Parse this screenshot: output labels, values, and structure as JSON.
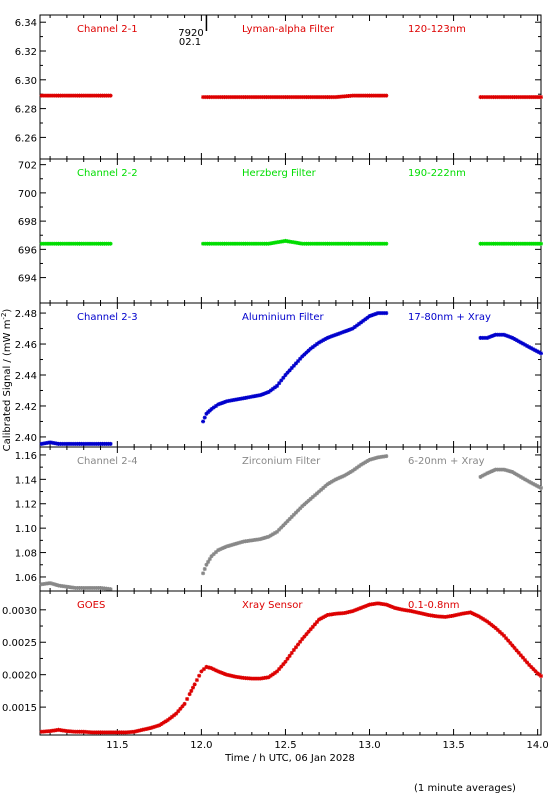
{
  "figure": {
    "ylabel": "Calibrated Signal / (mW m",
    "ylabel_sup": "-2",
    "ylabel_close": ")",
    "xlabel": "Time / h UTC, 06 Jan 2028",
    "footnote": "(1 minute averages)",
    "marker": {
      "top": "7920",
      "bottom": "02.1"
    }
  },
  "chart_data": [
    {
      "type": "scatter",
      "channel": "Channel 2-1",
      "filter": "Lyman-alpha Filter",
      "band": "120-123nm",
      "color": "#dd0000",
      "xlim": [
        11.04,
        14.02
      ],
      "ylim": [
        6.245,
        6.345
      ],
      "yticks": [
        6.26,
        6.28,
        6.3,
        6.32,
        6.34
      ],
      "ytick_labels": [
        "6.26",
        "6.28",
        "6.30",
        "6.32",
        "6.34"
      ],
      "series": [
        {
          "x": [
            11.05,
            11.1,
            11.15,
            11.2,
            11.25,
            11.3,
            11.35,
            11.4,
            11.46
          ],
          "y": [
            6.289,
            6.289,
            6.289,
            6.289,
            6.289,
            6.289,
            6.289,
            6.289,
            6.289
          ]
        },
        {
          "x": [
            12.01,
            12.1,
            12.2,
            12.3,
            12.4,
            12.5,
            12.6,
            12.7,
            12.8,
            12.9,
            13.0,
            13.1
          ],
          "y": [
            6.288,
            6.288,
            6.288,
            6.288,
            6.288,
            6.288,
            6.288,
            6.288,
            6.288,
            6.289,
            6.289,
            6.289
          ]
        },
        {
          "x": [
            13.66,
            13.75,
            13.85,
            13.95,
            14.02
          ],
          "y": [
            6.288,
            6.288,
            6.288,
            6.288,
            6.288
          ]
        }
      ]
    },
    {
      "type": "scatter",
      "channel": "Channel 2-2",
      "filter": "Herzberg Filter",
      "band": "190-222nm",
      "color": "#00dd00",
      "xlim": [
        11.04,
        14.02
      ],
      "ylim": [
        692.2,
        702.4
      ],
      "yticks": [
        694,
        696,
        698,
        700,
        702
      ],
      "ytick_labels": [
        "694",
        "696",
        "698",
        "700",
        "702"
      ],
      "series": [
        {
          "x": [
            11.05,
            11.1,
            11.15,
            11.2,
            11.25,
            11.3,
            11.35,
            11.4,
            11.46
          ],
          "y": [
            696.4,
            696.4,
            696.4,
            696.4,
            696.4,
            696.4,
            696.4,
            696.4,
            696.4
          ]
        },
        {
          "x": [
            12.01,
            12.1,
            12.2,
            12.3,
            12.4,
            12.5,
            12.6,
            12.7,
            12.8,
            12.9,
            13.0,
            13.1
          ],
          "y": [
            696.4,
            696.4,
            696.4,
            696.4,
            696.4,
            696.6,
            696.4,
            696.4,
            696.4,
            696.4,
            696.4,
            696.4
          ]
        },
        {
          "x": [
            13.66,
            13.75,
            13.85,
            13.95,
            14.02
          ],
          "y": [
            696.4,
            696.4,
            696.4,
            696.4,
            696.4
          ]
        }
      ]
    },
    {
      "type": "scatter",
      "channel": "Channel 2-3",
      "filter": "Aluminium Filter",
      "band": "17-80nm + Xray",
      "color": "#0000cc",
      "xlim": [
        11.04,
        14.02
      ],
      "ylim": [
        2.3935,
        2.4865
      ],
      "yticks": [
        2.4,
        2.42,
        2.44,
        2.46,
        2.48
      ],
      "ytick_labels": [
        "2.40",
        "2.42",
        "2.44",
        "2.46",
        "2.48"
      ],
      "series": [
        {
          "x": [
            11.05,
            11.1,
            11.15,
            11.2,
            11.25,
            11.3,
            11.35,
            11.4,
            11.46
          ],
          "y": [
            2.3955,
            2.3965,
            2.3955,
            2.3955,
            2.3955,
            2.3955,
            2.3955,
            2.3955,
            2.3955
          ]
        },
        {
          "x": [
            12.01,
            12.03,
            12.06,
            12.1,
            12.15,
            12.2,
            12.25,
            12.3,
            12.35,
            12.4,
            12.45,
            12.5,
            12.55,
            12.6,
            12.65,
            12.7,
            12.75,
            12.8,
            12.85,
            12.9,
            12.95,
            13.0,
            13.05,
            13.1
          ],
          "y": [
            2.41,
            2.415,
            2.418,
            2.421,
            2.423,
            2.424,
            2.425,
            2.426,
            2.427,
            2.429,
            2.433,
            2.44,
            2.446,
            2.452,
            2.457,
            2.461,
            2.464,
            2.466,
            2.468,
            2.47,
            2.474,
            2.478,
            2.48,
            2.48
          ]
        },
        {
          "x": [
            13.66,
            13.7,
            13.75,
            13.8,
            13.85,
            13.9,
            13.95,
            14.02
          ],
          "y": [
            2.464,
            2.464,
            2.466,
            2.466,
            2.464,
            2.461,
            2.458,
            2.454
          ]
        }
      ]
    },
    {
      "type": "scatter",
      "channel": "Channel 2-4",
      "filter": "Zirconium Filter",
      "band": "6-20nm + Xray",
      "color": "#888888",
      "xlim": [
        11.04,
        14.02
      ],
      "ylim": [
        1.0485,
        1.1665
      ],
      "yticks": [
        1.06,
        1.08,
        1.1,
        1.12,
        1.14,
        1.16
      ],
      "ytick_labels": [
        "1.06",
        "1.08",
        "1.10",
        "1.12",
        "1.14",
        "1.16"
      ],
      "series": [
        {
          "x": [
            11.05,
            11.1,
            11.15,
            11.2,
            11.25,
            11.3,
            11.35,
            11.4,
            11.46
          ],
          "y": [
            1.054,
            1.055,
            1.053,
            1.052,
            1.051,
            1.051,
            1.051,
            1.051,
            1.05
          ]
        },
        {
          "x": [
            12.01,
            12.03,
            12.06,
            12.1,
            12.15,
            12.2,
            12.25,
            12.3,
            12.35,
            12.4,
            12.45,
            12.5,
            12.55,
            12.6,
            12.65,
            12.7,
            12.75,
            12.8,
            12.85,
            12.9,
            12.95,
            13.0,
            13.05,
            13.1
          ],
          "y": [
            1.063,
            1.07,
            1.077,
            1.082,
            1.085,
            1.087,
            1.089,
            1.09,
            1.091,
            1.093,
            1.097,
            1.104,
            1.111,
            1.118,
            1.124,
            1.13,
            1.136,
            1.14,
            1.143,
            1.147,
            1.152,
            1.156,
            1.158,
            1.159
          ]
        },
        {
          "x": [
            13.66,
            13.7,
            13.75,
            13.8,
            13.85,
            13.9,
            13.95,
            14.02
          ],
          "y": [
            1.142,
            1.145,
            1.148,
            1.148,
            1.146,
            1.142,
            1.138,
            1.133
          ]
        }
      ]
    },
    {
      "type": "scatter",
      "channel": "GOES",
      "filter": "Xray Sensor",
      "band": "0.1-0.8nm",
      "color": "#dd0000",
      "xlim": [
        11.04,
        14.02
      ],
      "ylim": [
        0.00107,
        0.00329
      ],
      "yticks": [
        0.0015,
        0.002,
        0.0025,
        0.003
      ],
      "ytick_labels": [
        "0.0015",
        "0.0020",
        "0.0025",
        "0.0030"
      ],
      "series": [
        {
          "x": [
            11.05,
            11.1,
            11.15,
            11.2,
            11.25,
            11.3,
            11.35,
            11.4,
            11.45,
            11.5,
            11.55,
            11.6,
            11.65,
            11.7,
            11.75,
            11.8,
            11.85,
            11.9,
            11.93,
            11.96,
            12.0,
            12.03,
            12.06,
            12.1,
            12.15,
            12.2,
            12.25,
            12.3,
            12.35,
            12.4,
            12.45,
            12.5,
            12.55,
            12.6,
            12.65,
            12.7,
            12.75,
            12.8,
            12.85,
            12.9,
            12.95,
            13.0,
            13.05,
            13.1,
            13.15,
            13.2,
            13.25,
            13.3,
            13.35,
            13.4,
            13.45,
            13.5,
            13.55,
            13.6,
            13.65,
            13.7,
            13.75,
            13.8,
            13.85,
            13.9,
            13.95,
            14.0,
            14.02
          ],
          "y": [
            0.00112,
            0.00113,
            0.00115,
            0.00113,
            0.00112,
            0.00112,
            0.00111,
            0.00111,
            0.00111,
            0.00111,
            0.00111,
            0.00112,
            0.00115,
            0.00118,
            0.00122,
            0.0013,
            0.0014,
            0.00155,
            0.0017,
            0.00185,
            0.00205,
            0.00212,
            0.0021,
            0.00205,
            0.002,
            0.00197,
            0.00195,
            0.00194,
            0.00194,
            0.00196,
            0.00205,
            0.0022,
            0.00238,
            0.00255,
            0.0027,
            0.00285,
            0.00292,
            0.00294,
            0.00295,
            0.00298,
            0.00303,
            0.00308,
            0.0031,
            0.00308,
            0.00303,
            0.003,
            0.00298,
            0.00295,
            0.00292,
            0.0029,
            0.00289,
            0.00291,
            0.00294,
            0.00296,
            0.0029,
            0.00282,
            0.00272,
            0.0026,
            0.00245,
            0.0023,
            0.00215,
            0.00202,
            0.00198
          ]
        }
      ]
    }
  ],
  "xaxis": {
    "ticks": [
      11.5,
      12.0,
      12.5,
      13.0,
      13.5,
      14.0
    ],
    "tick_labels": [
      "11.5",
      "12.0",
      "12.5",
      "13.0",
      "13.5",
      "14.0"
    ],
    "marker_x": 12.03
  }
}
